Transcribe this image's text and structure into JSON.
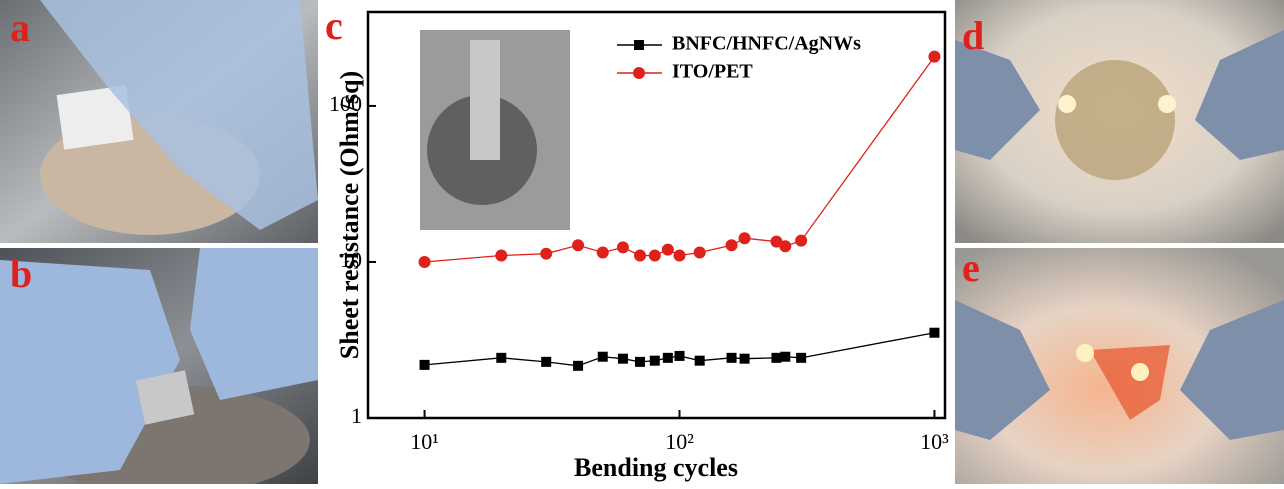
{
  "panel_labels": [
    "a",
    "b",
    "d",
    "e"
  ],
  "chart_data": {
    "type": "line",
    "panel_label": "c",
    "xlabel": "Bending cycles",
    "ylabel": "Sheet resistance (Ohm/sq)",
    "xscale": "log",
    "yscale": "log",
    "legend": "upper right",
    "x": [
      10,
      20,
      30,
      40,
      50,
      60,
      70,
      80,
      90,
      100,
      120,
      160,
      180,
      240,
      260,
      300,
      1000
    ],
    "series": [
      {
        "name": "BNFC/HNFC/AgNWs",
        "color": "#000000",
        "marker": "square",
        "values": [
          2.19,
          2.43,
          2.29,
          2.16,
          2.47,
          2.4,
          2.29,
          2.33,
          2.43,
          2.5,
          2.33,
          2.43,
          2.4,
          2.43,
          2.47,
          2.43,
          3.52
        ]
      },
      {
        "name": "ITO/PET",
        "color": "#e0201a",
        "marker": "circle",
        "values": [
          10,
          11,
          11.3,
          12.8,
          11.5,
          12.4,
          11,
          11,
          12,
          11,
          11.5,
          12.8,
          14.2,
          13.5,
          12.6,
          13.7,
          207
        ]
      }
    ],
    "xlim": [
      6,
      1100
    ],
    "xticks": [
      {
        "value": 10,
        "label": "10¹"
      },
      {
        "value": 100,
        "label": "10²"
      },
      {
        "value": 1000,
        "label": "10³"
      }
    ],
    "ylim": [
      1,
      400
    ],
    "yticks": [
      1,
      10,
      100
    ]
  }
}
